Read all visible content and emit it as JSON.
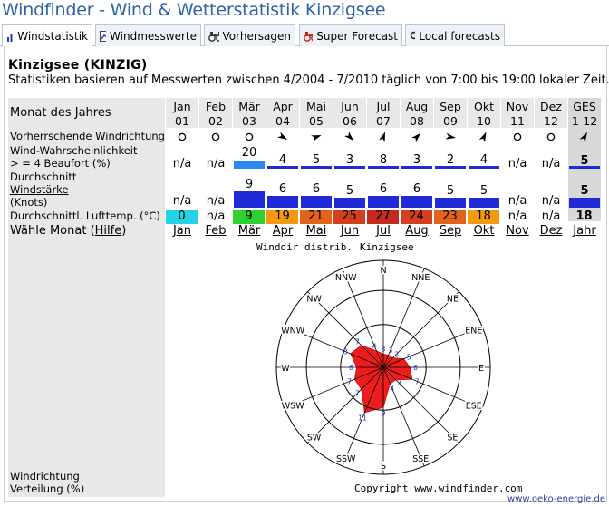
{
  "page_title": "Windfinder - Wind & Wetterstatistik Kinzigsee",
  "tabs": [
    {
      "label": "Windstatistik",
      "icon": "bar-chart-icon",
      "active": true
    },
    {
      "label": "Windmesswerte",
      "icon": "line-chart-icon",
      "active": false
    },
    {
      "label": "Vorhersagen",
      "icon": "binoculars-icon",
      "active": false
    },
    {
      "label": "Super Forecast",
      "icon": "binoculars-red-icon",
      "active": false
    },
    {
      "label": "Local forecasts",
      "icon": "magnifier-icon",
      "active": false
    }
  ],
  "station": {
    "title": "Kinzigsee (KINZIG)",
    "subtitle": "Statistiken basieren auf Messwerten zwischen 4/2004 - 7/2010 täglich von 7:00 bis 19:00 lokaler Zeit."
  },
  "row_labels": {
    "month_of_year": "Monat des Jahres",
    "dir_prefix": "Vorherrschende ",
    "dir_link": "Windrichtung",
    "prob_line1": "Wind-Wahrscheinlichkeit",
    "prob_line2": "> = 4 Beaufort (%)",
    "avg_line1": "Durchschnitt",
    "avg_link": "Windstärke",
    "avg_line3": "(Knots)",
    "temp": "Durchschnittl. Lufttemp. (°C)",
    "select_prefix": "Wähle Monat (",
    "select_link": "Hilfe",
    "select_suffix": ")",
    "rose_line1": "Windrichtung",
    "rose_line2": "Verteilung (%)"
  },
  "months": [
    {
      "name": "Jan",
      "num": "01",
      "dir": "calm",
      "prob": null,
      "avg": null,
      "temp": "0",
      "temp_color": "#22d3e6",
      "link": "Jan"
    },
    {
      "name": "Feb",
      "num": "02",
      "dir": "calm",
      "prob": null,
      "avg": null,
      "temp": null,
      "temp_color": null,
      "link": "Feb"
    },
    {
      "name": "Mär",
      "num": "03",
      "dir": "calm",
      "prob": 20,
      "avg": 9,
      "temp": "9",
      "temp_color": "#2fd12f",
      "link": "Mär"
    },
    {
      "name": "Apr",
      "num": "04",
      "dir": "arrow",
      "angle": 120,
      "prob": 4,
      "avg": 6,
      "temp": "19",
      "temp_color": "#f59a0e",
      "link": "Apr"
    },
    {
      "name": "Mai",
      "num": "05",
      "dir": "arrow",
      "angle": 70,
      "prob": 5,
      "avg": 6,
      "temp": "21",
      "temp_color": "#e1641a",
      "link": "Mai"
    },
    {
      "name": "Jun",
      "num": "06",
      "dir": "arrow",
      "angle": 135,
      "prob": 3,
      "avg": 5,
      "temp": "25",
      "temp_color": "#d4401f",
      "link": "Jun"
    },
    {
      "name": "Jul",
      "num": "07",
      "dir": "arrow",
      "angle": 20,
      "prob": 8,
      "avg": 6,
      "temp": "27",
      "temp_color": "#c42a1f",
      "link": "Jul"
    },
    {
      "name": "Aug",
      "num": "08",
      "dir": "arrow",
      "angle": 45,
      "prob": 3,
      "avg": 6,
      "temp": "24",
      "temp_color": "#d4401f",
      "link": "Aug"
    },
    {
      "name": "Sep",
      "num": "09",
      "dir": "arrow",
      "angle": 100,
      "prob": 2,
      "avg": 5,
      "temp": "23",
      "temp_color": "#e1641a",
      "link": "Sep"
    },
    {
      "name": "Okt",
      "num": "10",
      "dir": "arrow",
      "angle": 25,
      "prob": 4,
      "avg": 5,
      "temp": "18",
      "temp_color": "#f59a0e",
      "link": "Okt"
    },
    {
      "name": "Nov",
      "num": "11",
      "dir": "calm",
      "prob": null,
      "avg": null,
      "temp": null,
      "temp_color": null,
      "link": "Nov"
    },
    {
      "name": "Dez",
      "num": "12",
      "dir": "calm",
      "prob": null,
      "avg": null,
      "temp": null,
      "temp_color": null,
      "link": "Dez"
    }
  ],
  "ges": {
    "name": "GES",
    "num": "1-12",
    "dir": "arrow",
    "angle": 30,
    "prob": 5,
    "avg": 5,
    "temp": "18",
    "link": "Jahr"
  },
  "na_text": "n/a",
  "rose": {
    "title_left": "Winddir distrib.",
    "title_right": "Kinzigsee",
    "copyright": "Copyright www.windfinder.com",
    "directions": [
      "N",
      "NNE",
      "NE",
      "ENE",
      "E",
      "ESE",
      "SE",
      "SSE",
      "S",
      "SSW",
      "SW",
      "WSW",
      "W",
      "WNW",
      "NW",
      "NNW"
    ],
    "values": [
      3,
      3,
      3,
      5,
      6,
      7,
      4,
      4,
      9,
      11,
      7,
      7,
      6,
      8,
      7,
      4
    ]
  },
  "footer_link": "www.oeko-energie.de",
  "colors": {
    "title_blue": "#2d63a8",
    "bar_dark_blue": "#1f2bd6",
    "bar_light_blue": "#2b86f0",
    "rose_fill": "#ee1c1c"
  }
}
